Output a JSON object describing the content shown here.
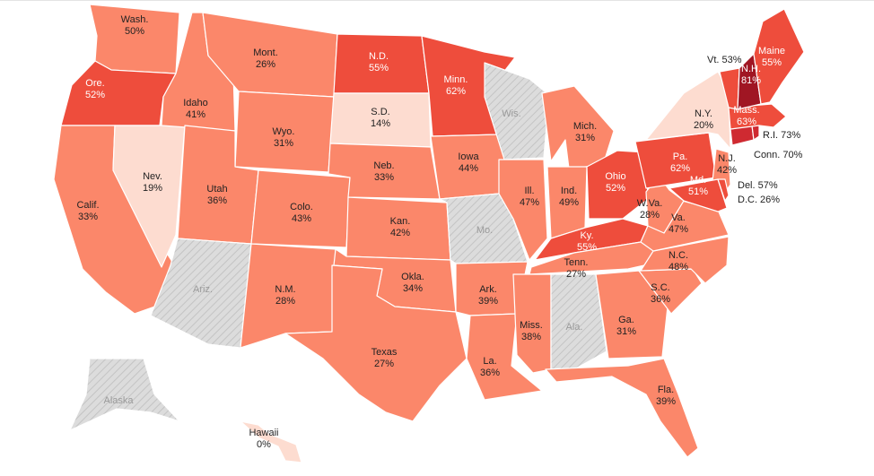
{
  "colors": {
    "none": "#dcdcdc",
    "hatch": "#c4c4c4",
    "c0": "#fddcd0",
    "c1": "#fb876a",
    "c2": "#ee4d3c",
    "c3": "#cf2a31",
    "c4": "#a01623"
  },
  "states": [
    {
      "id": "WA",
      "name": "Wash.",
      "value": "50%",
      "color": "c1"
    },
    {
      "id": "OR",
      "name": "Ore.",
      "value": "52%",
      "color": "c2"
    },
    {
      "id": "CA",
      "name": "Calif.",
      "value": "33%",
      "color": "c1"
    },
    {
      "id": "NV",
      "name": "Nev.",
      "value": "19%",
      "color": "c0"
    },
    {
      "id": "ID",
      "name": "Idaho",
      "value": "41%",
      "color": "c1"
    },
    {
      "id": "MT",
      "name": "Mont.",
      "value": "26%",
      "color": "c1"
    },
    {
      "id": "WY",
      "name": "Wyo.",
      "value": "31%",
      "color": "c1"
    },
    {
      "id": "UT",
      "name": "Utah",
      "value": "36%",
      "color": "c1"
    },
    {
      "id": "AZ",
      "name": "Ariz.",
      "value": "",
      "color": "none"
    },
    {
      "id": "CO",
      "name": "Colo.",
      "value": "43%",
      "color": "c1"
    },
    {
      "id": "NM",
      "name": "N.M.",
      "value": "28%",
      "color": "c1"
    },
    {
      "id": "ND",
      "name": "N.D.",
      "value": "55%",
      "color": "c2"
    },
    {
      "id": "SD",
      "name": "S.D.",
      "value": "14%",
      "color": "c0"
    },
    {
      "id": "NE",
      "name": "Neb.",
      "value": "33%",
      "color": "c1"
    },
    {
      "id": "KS",
      "name": "Kan.",
      "value": "42%",
      "color": "c1"
    },
    {
      "id": "OK",
      "name": "Okla.",
      "value": "34%",
      "color": "c1"
    },
    {
      "id": "TX",
      "name": "Texas",
      "value": "27%",
      "color": "c1"
    },
    {
      "id": "MN",
      "name": "Minn.",
      "value": "62%",
      "color": "c2"
    },
    {
      "id": "IA",
      "name": "Iowa",
      "value": "44%",
      "color": "c1"
    },
    {
      "id": "MO",
      "name": "Mo.",
      "value": "",
      "color": "none"
    },
    {
      "id": "AR",
      "name": "Ark.",
      "value": "39%",
      "color": "c1"
    },
    {
      "id": "LA",
      "name": "La.",
      "value": "36%",
      "color": "c1"
    },
    {
      "id": "WI",
      "name": "Wis.",
      "value": "",
      "color": "none"
    },
    {
      "id": "IL",
      "name": "Ill.",
      "value": "47%",
      "color": "c1"
    },
    {
      "id": "MI",
      "name": "Mich.",
      "value": "31%",
      "color": "c1"
    },
    {
      "id": "IN",
      "name": "Ind.",
      "value": "49%",
      "color": "c1"
    },
    {
      "id": "OH",
      "name": "Ohio",
      "value": "52%",
      "color": "c2"
    },
    {
      "id": "KY",
      "name": "Ky.",
      "value": "55%",
      "color": "c2"
    },
    {
      "id": "TN",
      "name": "Tenn.",
      "value": "27%",
      "color": "c1"
    },
    {
      "id": "MS",
      "name": "Miss.",
      "value": "38%",
      "color": "c1"
    },
    {
      "id": "AL",
      "name": "Ala.",
      "value": "",
      "color": "none"
    },
    {
      "id": "GA",
      "name": "Ga.",
      "value": "31%",
      "color": "c1"
    },
    {
      "id": "FL",
      "name": "Fla.",
      "value": "39%",
      "color": "c1"
    },
    {
      "id": "SC",
      "name": "S.C.",
      "value": "36%",
      "color": "c1"
    },
    {
      "id": "NC",
      "name": "N.C.",
      "value": "48%",
      "color": "c1"
    },
    {
      "id": "VA",
      "name": "Va.",
      "value": "47%",
      "color": "c1"
    },
    {
      "id": "WV",
      "name": "W.Va.",
      "value": "28%",
      "color": "c1"
    },
    {
      "id": "PA",
      "name": "Pa.",
      "value": "62%",
      "color": "c2"
    },
    {
      "id": "NY",
      "name": "N.Y.",
      "value": "20%",
      "color": "c0"
    },
    {
      "id": "NJ",
      "name": "N.J.",
      "value": "42%",
      "color": "c1"
    },
    {
      "id": "MD",
      "name": "Md.",
      "value": "51%",
      "color": "c2"
    },
    {
      "id": "DE",
      "name": "Del.",
      "value": "57%",
      "color": "c2"
    },
    {
      "id": "DC",
      "name": "D.C.",
      "value": "26%",
      "color": "c1"
    },
    {
      "id": "CT",
      "name": "Conn.",
      "value": "70%",
      "color": "c3"
    },
    {
      "id": "RI",
      "name": "R.I.",
      "value": "73%",
      "color": "c3"
    },
    {
      "id": "MA",
      "name": "Mass.",
      "value": "63%",
      "color": "c2"
    },
    {
      "id": "VT",
      "name": "Vt.",
      "value": "53%",
      "color": "c2"
    },
    {
      "id": "NH",
      "name": "N.H.",
      "value": "81%",
      "color": "c4"
    },
    {
      "id": "ME",
      "name": "Maine",
      "value": "55%",
      "color": "c2"
    },
    {
      "id": "AK",
      "name": "Alaska",
      "value": "",
      "color": "none"
    },
    {
      "id": "HI",
      "name": "Hawaii",
      "value": "0%",
      "color": "c0"
    }
  ]
}
